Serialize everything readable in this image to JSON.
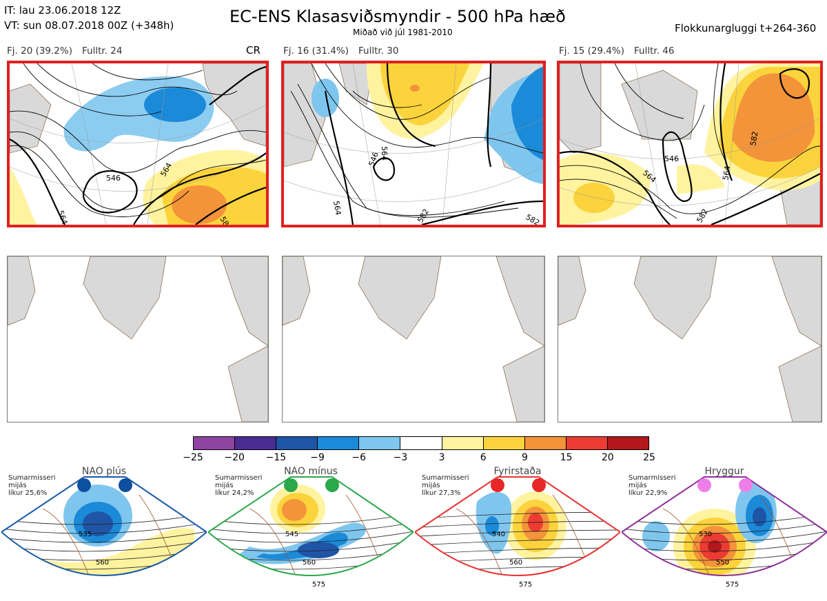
{
  "header": {
    "it_line": "IT: lau 23.06.2018 12Z",
    "vt_line": "VT: sun 08.07.2018 00Z  (+348h)",
    "title": "EC-ENS Klasasviðsmyndir - 500 hPa hæð",
    "subtitle": "Miðað við júl 1981-2010",
    "window": "Flokkunargluggi t+264-360"
  },
  "panels": [
    {
      "fj": "Fj. 20 (39.2%)",
      "fulltr": "Fulltr. 24",
      "tag": "CR",
      "labels": [
        "546",
        "564",
        "564",
        "582"
      ]
    },
    {
      "fj": "Fj. 16 (31.4%)",
      "fulltr": "Fulltr. 30",
      "tag": "",
      "labels": [
        "546",
        "564",
        "564",
        "582",
        "582"
      ]
    },
    {
      "fj": "Fj. 15 (29.4%)",
      "fulltr": "Fulltr. 46",
      "tag": "",
      "labels": [
        "546",
        "564",
        "564",
        "582",
        "582"
      ]
    }
  ],
  "colorbar": {
    "ticks": [
      "−25",
      "−20",
      "−15",
      "−9",
      "−6",
      "−3",
      "3",
      "6",
      "9",
      "15",
      "20",
      "25"
    ],
    "colors": [
      "#8e44a0",
      "#4a2d91",
      "#1f55a6",
      "#1b8ad8",
      "#7fc6ee",
      "#ffffff",
      "#fff3a0",
      "#fbd33c",
      "#f3933a",
      "#ec3b33",
      "#b3161b"
    ]
  },
  "regimes": [
    {
      "name": "NAO plús",
      "note1": "Sumarmisseri",
      "note2": "mijás",
      "note3": "líkur 25,6%",
      "color": "#1659a7",
      "dot": "#0d4fa0",
      "labels": [
        "535",
        "560"
      ]
    },
    {
      "name": "NAO mínus",
      "note1": "Sumarmisseri",
      "note2": "mijás",
      "note3": "líkur 24,2%",
      "color": "#2aa84a",
      "dot": "#2aa84a",
      "labels": [
        "545",
        "560",
        "575"
      ]
    },
    {
      "name": "Fyrirstaða",
      "note1": "Sumarmisseri",
      "note2": "mijás",
      "note3": "líkur 27,3%",
      "color": "#e83232",
      "dot": "#e82828",
      "labels": [
        "540",
        "560",
        "575"
      ]
    },
    {
      "name": "Hryggur",
      "note1": "Sumarmisseri",
      "note2": "mijás",
      "note3": "líkur 22,9%",
      "color": "#8b2f96",
      "dot": "#ee7fe9",
      "labels": [
        "530",
        "550",
        "575"
      ]
    }
  ]
}
